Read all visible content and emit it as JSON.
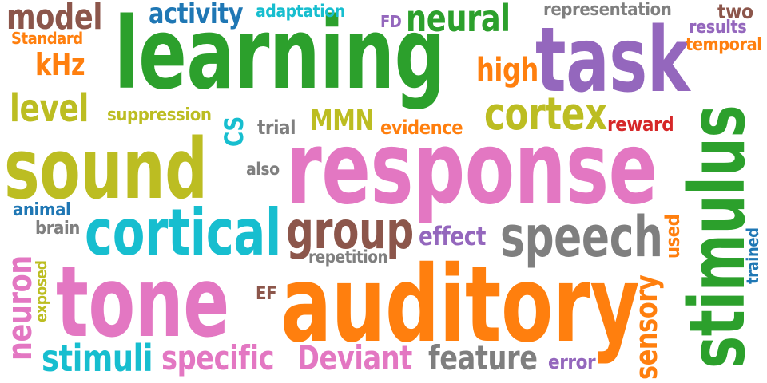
{
  "words": [
    {
      "text": "learning",
      "color": "#2ca02c"
    },
    {
      "text": "response",
      "color": "#e377c2"
    },
    {
      "text": "auditory",
      "color": "#ff7f0e"
    },
    {
      "text": "stimulus",
      "color": "#2ca02c"
    },
    {
      "text": "task",
      "color": "#9467bd"
    },
    {
      "text": "tone",
      "color": "#e377c2"
    },
    {
      "text": "sound",
      "color": "#bcbd22"
    },
    {
      "text": "cortical",
      "color": "#17becf"
    },
    {
      "text": "speech",
      "color": "#7f7f7f"
    },
    {
      "text": "group",
      "color": "#8c564b"
    },
    {
      "text": "cortex",
      "color": "#bcbd22"
    },
    {
      "text": "neural",
      "color": "#2ca02c"
    },
    {
      "text": "model",
      "color": "#8c564b"
    },
    {
      "text": "stimuli",
      "color": "#17becf"
    },
    {
      "text": "specific",
      "color": "#e377c2"
    },
    {
      "text": "Deviant",
      "color": "#e377c2"
    },
    {
      "text": "feature",
      "color": "#7f7f7f"
    },
    {
      "text": "neuron",
      "color": "#e377c2"
    },
    {
      "text": "sensory",
      "color": "#ff7f0e"
    },
    {
      "text": "activity",
      "color": "#1f77b4"
    },
    {
      "text": "level",
      "color": "#bcbd22"
    },
    {
      "text": "high",
      "color": "#ff7f0e"
    },
    {
      "text": "effect",
      "color": "#9467bd"
    },
    {
      "text": "MMN",
      "color": "#bcbd22"
    },
    {
      "text": "kHz",
      "color": "#ff7f0e"
    },
    {
      "text": "representation",
      "color": "#7f7f7f"
    },
    {
      "text": "adaptation",
      "color": "#17becf"
    },
    {
      "text": "two",
      "color": "#8c564b"
    },
    {
      "text": "results",
      "color": "#9467bd"
    },
    {
      "text": "temporal",
      "color": "#ff7f0e"
    },
    {
      "text": "Standard",
      "color": "#ff7f0e"
    },
    {
      "text": "suppression",
      "color": "#bcbd22"
    },
    {
      "text": "CS",
      "color": "#17becf"
    },
    {
      "text": "trial",
      "color": "#7f7f7f"
    },
    {
      "text": "evidence",
      "color": "#ff7f0e"
    },
    {
      "text": "reward",
      "color": "#d62728"
    },
    {
      "text": "also",
      "color": "#7f7f7f"
    },
    {
      "text": "animal",
      "color": "#1f77b4"
    },
    {
      "text": "brain",
      "color": "#7f7f7f"
    },
    {
      "text": "repetition",
      "color": "#7f7f7f"
    },
    {
      "text": "used",
      "color": "#ff7f0e"
    },
    {
      "text": "trained",
      "color": "#1f77b4"
    },
    {
      "text": "exposed",
      "color": "#bcbd22"
    },
    {
      "text": "EF",
      "color": "#8c564b"
    },
    {
      "text": "FD",
      "color": "#9467bd"
    },
    {
      "text": "error",
      "color": "#9467bd"
    }
  ]
}
